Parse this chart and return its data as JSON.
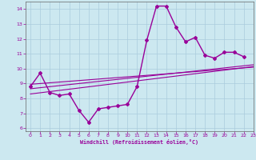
{
  "x": [
    0,
    1,
    2,
    3,
    4,
    5,
    6,
    7,
    8,
    9,
    10,
    11,
    12,
    13,
    14,
    15,
    16,
    17,
    18,
    19,
    20,
    21,
    22,
    23
  ],
  "y_main": [
    8.8,
    9.7,
    8.4,
    8.2,
    8.3,
    7.2,
    6.4,
    7.3,
    7.4,
    7.5,
    7.6,
    8.8,
    11.9,
    14.2,
    14.2,
    12.8,
    11.8,
    12.1,
    10.9,
    10.7,
    11.1,
    11.1,
    10.8,
    null
  ],
  "y_trend1": [
    8.65,
    8.72,
    8.79,
    8.86,
    8.93,
    9.0,
    9.07,
    9.14,
    9.21,
    9.28,
    9.35,
    9.42,
    9.49,
    9.56,
    9.63,
    9.7,
    9.77,
    9.84,
    9.91,
    9.98,
    10.05,
    10.12,
    10.19,
    10.26
  ],
  "y_trend2": [
    8.3,
    8.38,
    8.46,
    8.54,
    8.62,
    8.7,
    8.78,
    8.86,
    8.94,
    9.02,
    9.1,
    9.18,
    9.26,
    9.34,
    9.42,
    9.5,
    9.58,
    9.66,
    9.74,
    9.82,
    9.9,
    9.98,
    10.06,
    10.14
  ],
  "y_trend3": [
    8.95,
    9.0,
    9.05,
    9.1,
    9.15,
    9.2,
    9.25,
    9.3,
    9.35,
    9.4,
    9.45,
    9.5,
    9.55,
    9.6,
    9.65,
    9.7,
    9.75,
    9.8,
    9.85,
    9.9,
    9.95,
    10.0,
    10.05,
    10.1
  ],
  "line_color": "#990099",
  "bg_color": "#cce8f0",
  "grid_color": "#aaccdd",
  "xlabel": "Windchill (Refroidissement éolien,°C)",
  "ylim": [
    5.8,
    14.5
  ],
  "xlim": [
    -0.5,
    23
  ],
  "yticks": [
    6,
    7,
    8,
    9,
    10,
    11,
    12,
    13,
    14
  ],
  "xticks": [
    0,
    1,
    2,
    3,
    4,
    5,
    6,
    7,
    8,
    9,
    10,
    11,
    12,
    13,
    14,
    15,
    16,
    17,
    18,
    19,
    20,
    21,
    22,
    23
  ]
}
